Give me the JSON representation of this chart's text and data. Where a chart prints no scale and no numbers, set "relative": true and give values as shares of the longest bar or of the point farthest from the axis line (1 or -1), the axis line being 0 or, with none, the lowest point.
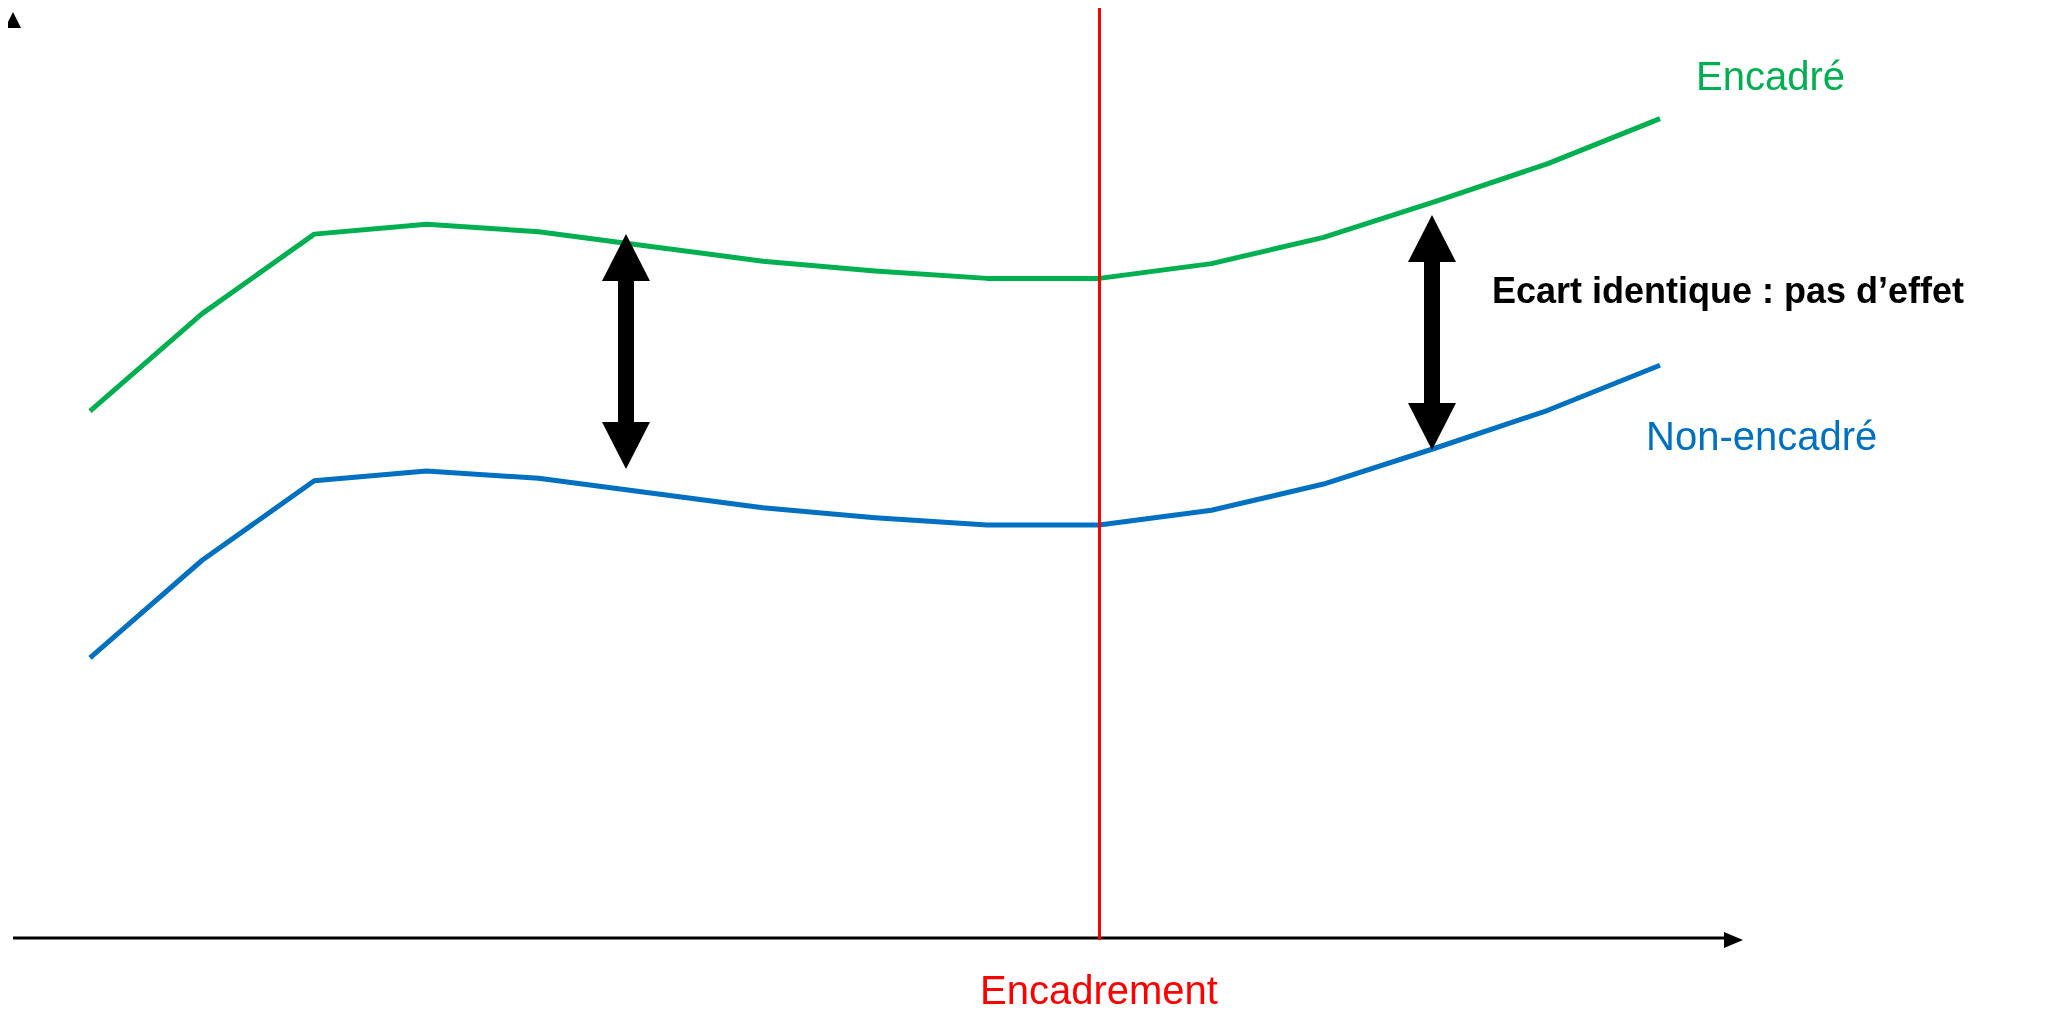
{
  "chart_data": {
    "type": "line",
    "relative": true,
    "categories": [
      null,
      null,
      null,
      null,
      null,
      null,
      null,
      null,
      null,
      null,
      null,
      null,
      null,
      null,
      null
    ],
    "series": [
      {
        "name": "Encadré",
        "color": "#00b050",
        "values": [
          0.643,
          0.762,
          0.859,
          0.871,
          0.862,
          0.844,
          0.826,
          0.814,
          0.805,
          0.805,
          0.823,
          0.855,
          0.899,
          0.945,
          1
        ]
      },
      {
        "name": "Non-encadré",
        "color": "#0070c0",
        "values": [
          0.342,
          0.461,
          0.558,
          0.57,
          0.561,
          0.543,
          0.525,
          0.513,
          0.504,
          0.504,
          0.522,
          0.554,
          0.598,
          0.644,
          0.699
        ]
      }
    ],
    "annotations": [
      "Ecart identique : pas d’effet",
      "Encadrement"
    ],
    "legend": false,
    "marker": "none",
    "line_style": "solid",
    "grid": false
  }
}
